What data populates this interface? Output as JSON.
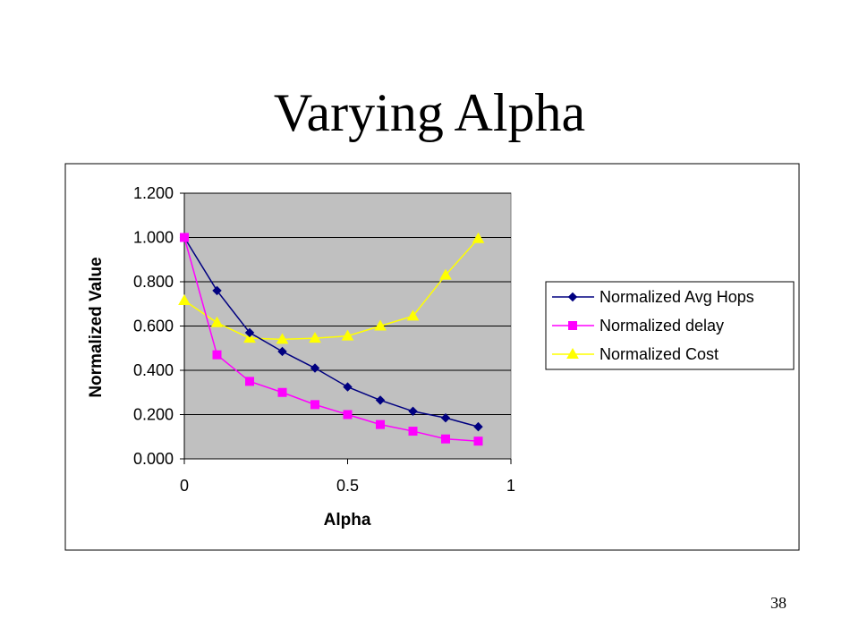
{
  "slide": {
    "title": "Varying Alpha",
    "page_number": "38"
  },
  "colors": {
    "plot_background": "#c0c0c0",
    "avg_hops": "#000080",
    "delay": "#ff00ff",
    "cost": "#ffff00"
  },
  "chart_data": {
    "type": "line",
    "title": "",
    "xlabel": "Alpha",
    "ylabel": "Normalized Value",
    "xlim": [
      0,
      1
    ],
    "ylim": [
      0,
      1.2
    ],
    "x_ticks": [
      "0",
      "0.5",
      "1"
    ],
    "y_ticks": [
      "0.000",
      "0.200",
      "0.400",
      "0.600",
      "0.800",
      "1.000",
      "1.200"
    ],
    "grid": "horizontal",
    "legend_position": "right",
    "x": [
      0,
      0.1,
      0.2,
      0.3,
      0.4,
      0.5,
      0.6,
      0.7,
      0.8,
      0.9
    ],
    "series": [
      {
        "name": "Normalized Avg Hops",
        "marker": "diamond",
        "color": "#000080",
        "values": [
          1.0,
          0.76,
          0.57,
          0.485,
          0.41,
          0.325,
          0.265,
          0.215,
          0.185,
          0.145
        ]
      },
      {
        "name": "Normalized delay",
        "marker": "square",
        "color": "#ff00ff",
        "values": [
          1.0,
          0.47,
          0.35,
          0.3,
          0.245,
          0.2,
          0.155,
          0.125,
          0.09,
          0.08
        ]
      },
      {
        "name": "Normalized Cost",
        "marker": "triangle",
        "color": "#ffff00",
        "values": [
          0.715,
          0.615,
          0.545,
          0.54,
          0.545,
          0.555,
          0.6,
          0.645,
          0.83,
          0.995
        ]
      }
    ]
  }
}
